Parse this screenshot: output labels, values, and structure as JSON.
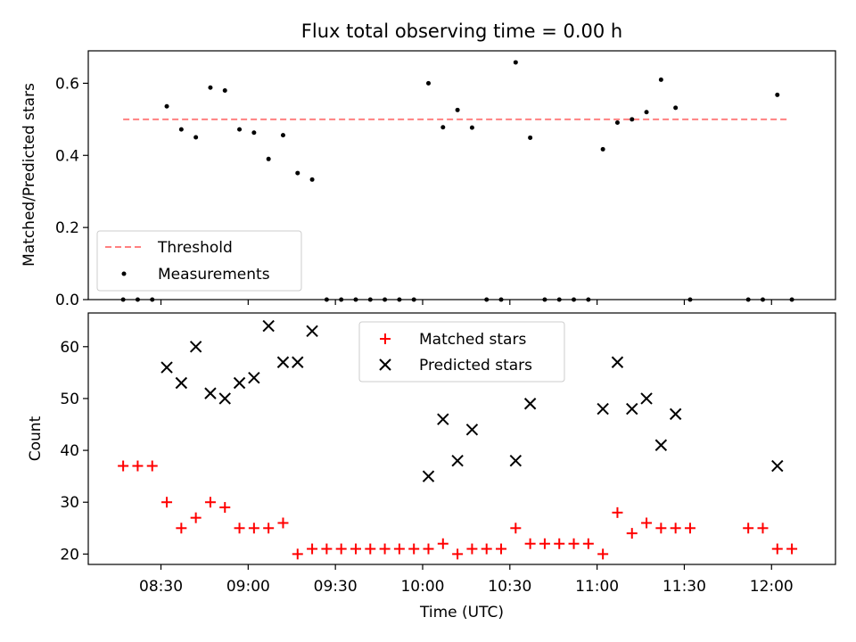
{
  "chart_data": [
    {
      "type": "scatter",
      "title": "Flux total observing time = 0.00 h",
      "ylabel": "Matched/Predicted stars",
      "ylim": [
        0,
        0.69
      ],
      "xlim": [
        "08:05",
        "12:22"
      ],
      "yticks": [
        0.0,
        0.2,
        0.4,
        0.6
      ],
      "yticklabels": [
        "0.0",
        "0.2",
        "0.4",
        "0.6"
      ],
      "grid": false,
      "legend": "lower-left",
      "threshold": {
        "name": "Threshold",
        "value": 0.5,
        "x_range": [
          "08:17",
          "12:06"
        ],
        "color": "#ff8080"
      },
      "series": [
        {
          "name": "Measurements",
          "color": "#000000",
          "points": [
            [
              "08:17",
              0.0
            ],
            [
              "08:22",
              0.0
            ],
            [
              "08:27",
              0.0
            ],
            [
              "08:32",
              0.536
            ],
            [
              "08:37",
              0.472
            ],
            [
              "08:42",
              0.45
            ],
            [
              "08:47",
              0.588
            ],
            [
              "08:52",
              0.58
            ],
            [
              "08:57",
              0.472
            ],
            [
              "09:02",
              0.463
            ],
            [
              "09:07",
              0.39
            ],
            [
              "09:12",
              0.456
            ],
            [
              "09:17",
              0.351
            ],
            [
              "09:22",
              0.333
            ],
            [
              "09:27",
              0.0
            ],
            [
              "09:32",
              0.0
            ],
            [
              "09:37",
              0.0
            ],
            [
              "09:42",
              0.0
            ],
            [
              "09:47",
              0.0
            ],
            [
              "09:52",
              0.0
            ],
            [
              "09:57",
              0.0
            ],
            [
              "10:02",
              0.6
            ],
            [
              "10:07",
              0.478
            ],
            [
              "10:12",
              0.526
            ],
            [
              "10:17",
              0.477
            ],
            [
              "10:22",
              0.0
            ],
            [
              "10:27",
              0.0
            ],
            [
              "10:32",
              0.658
            ],
            [
              "10:37",
              0.449
            ],
            [
              "10:42",
              0.0
            ],
            [
              "10:47",
              0.0
            ],
            [
              "10:52",
              0.0
            ],
            [
              "10:57",
              0.0
            ],
            [
              "11:02",
              0.417
            ],
            [
              "11:07",
              0.491
            ],
            [
              "11:12",
              0.5
            ],
            [
              "11:17",
              0.52
            ],
            [
              "11:22",
              0.61
            ],
            [
              "11:27",
              0.532
            ],
            [
              "11:32",
              0.0
            ],
            [
              "11:52",
              0.0
            ],
            [
              "11:57",
              0.0
            ],
            [
              "12:02",
              0.568
            ],
            [
              "12:07",
              0.0
            ]
          ]
        }
      ]
    },
    {
      "type": "scatter",
      "xlabel": "Time (UTC)",
      "ylabel": "Count",
      "ylim": [
        18,
        66.5
      ],
      "xlim": [
        "08:05",
        "12:22"
      ],
      "yticks": [
        20,
        30,
        40,
        50,
        60
      ],
      "yticklabels": [
        "20",
        "30",
        "40",
        "50",
        "60"
      ],
      "xticks": [
        "08:30",
        "09:00",
        "09:30",
        "10:00",
        "10:30",
        "11:00",
        "11:30",
        "12:00"
      ],
      "grid": false,
      "legend": "top-center",
      "series": [
        {
          "name": "Matched stars",
          "marker": "plus",
          "color": "#ff0000",
          "points": [
            [
              "08:17",
              37
            ],
            [
              "08:22",
              37
            ],
            [
              "08:27",
              37
            ],
            [
              "08:32",
              30
            ],
            [
              "08:37",
              25
            ],
            [
              "08:42",
              27
            ],
            [
              "08:47",
              30
            ],
            [
              "08:52",
              29
            ],
            [
              "08:57",
              25
            ],
            [
              "09:02",
              25
            ],
            [
              "09:07",
              25
            ],
            [
              "09:12",
              26
            ],
            [
              "09:17",
              20
            ],
            [
              "09:22",
              21
            ],
            [
              "09:27",
              21
            ],
            [
              "09:32",
              21
            ],
            [
              "09:37",
              21
            ],
            [
              "09:42",
              21
            ],
            [
              "09:47",
              21
            ],
            [
              "09:52",
              21
            ],
            [
              "09:57",
              21
            ],
            [
              "10:02",
              21
            ],
            [
              "10:07",
              22
            ],
            [
              "10:12",
              20
            ],
            [
              "10:17",
              21
            ],
            [
              "10:22",
              21
            ],
            [
              "10:27",
              21
            ],
            [
              "10:32",
              25
            ],
            [
              "10:37",
              22
            ],
            [
              "10:42",
              22
            ],
            [
              "10:47",
              22
            ],
            [
              "10:52",
              22
            ],
            [
              "10:57",
              22
            ],
            [
              "11:02",
              20
            ],
            [
              "11:07",
              28
            ],
            [
              "11:12",
              24
            ],
            [
              "11:17",
              26
            ],
            [
              "11:22",
              25
            ],
            [
              "11:27",
              25
            ],
            [
              "11:32",
              25
            ],
            [
              "11:52",
              25
            ],
            [
              "11:57",
              25
            ],
            [
              "12:02",
              21
            ],
            [
              "12:07",
              21
            ]
          ]
        },
        {
          "name": "Predicted stars",
          "marker": "x",
          "color": "#000000",
          "points": [
            [
              "08:32",
              56
            ],
            [
              "08:37",
              53
            ],
            [
              "08:42",
              60
            ],
            [
              "08:47",
              51
            ],
            [
              "08:52",
              50
            ],
            [
              "08:57",
              53
            ],
            [
              "09:02",
              54
            ],
            [
              "09:07",
              64
            ],
            [
              "09:12",
              57
            ],
            [
              "09:17",
              57
            ],
            [
              "09:22",
              63
            ],
            [
              "10:02",
              35
            ],
            [
              "10:07",
              46
            ],
            [
              "10:12",
              38
            ],
            [
              "10:17",
              44
            ],
            [
              "10:32",
              38
            ],
            [
              "10:37",
              49
            ],
            [
              "11:02",
              48
            ],
            [
              "11:07",
              57
            ],
            [
              "11:12",
              48
            ],
            [
              "11:17",
              50
            ],
            [
              "11:22",
              41
            ],
            [
              "11:27",
              47
            ],
            [
              "12:02",
              37
            ]
          ]
        }
      ]
    }
  ]
}
